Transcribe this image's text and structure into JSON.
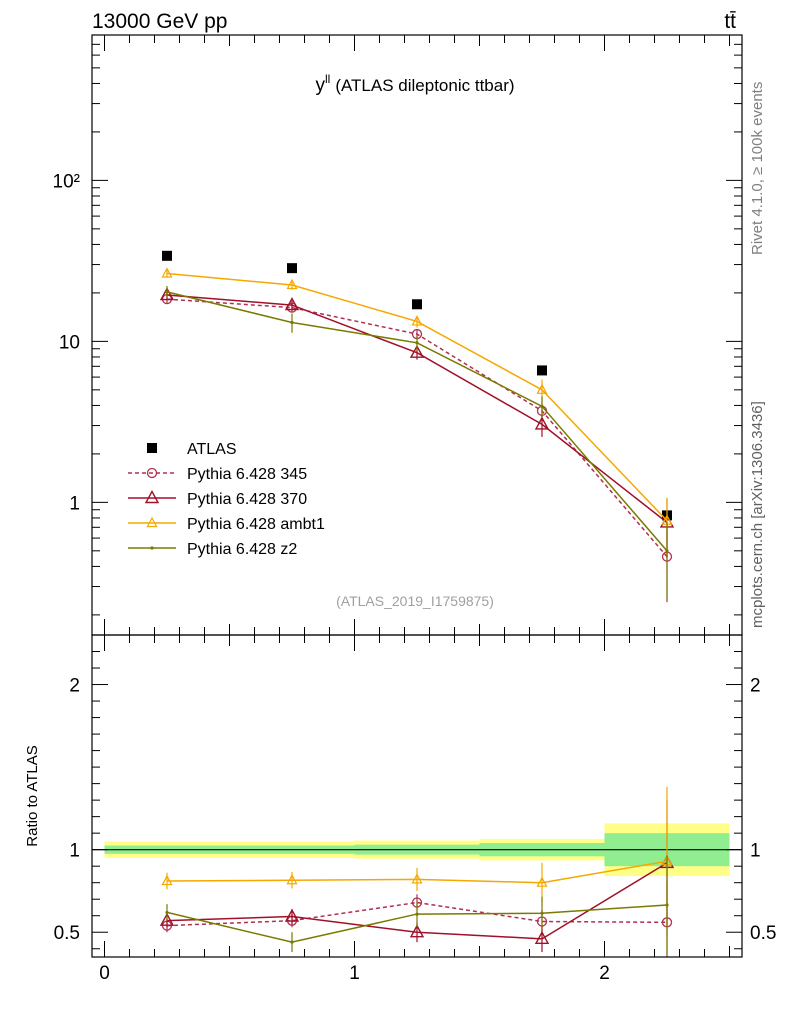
{
  "header": {
    "energy_label": "13000 GeV pp",
    "process_label": "tt̄"
  },
  "side_labels": {
    "rivet": "Rivet 4.1.0, ≥ 100k events",
    "mcplots": "mcplots.cern.ch [arXiv:1306.3436]"
  },
  "colors": {
    "atlas": "#000000",
    "p345": "#b03050",
    "p370": "#a01028",
    "ambt1": "#f5a800",
    "z2": "#7a7a00",
    "band_inner": "#90ee90",
    "band_outer": "#ffff88"
  },
  "chart_data": [
    {
      "type": "scatter",
      "title": "y",
      "title_superscript": "ll",
      "title_suffix": "(ATLAS dileptonic ttbar)",
      "analysis_id": "(ATLAS_2019_I1759875)",
      "yscale": "log",
      "xlim": [
        -0.05,
        2.55
      ],
      "ylim": [
        0.15,
        800
      ],
      "y_tick_labels": [
        "1",
        "10",
        "10²"
      ],
      "legend_position": "bottom-left",
      "bins": [
        [
          0,
          0.5
        ],
        [
          0.5,
          1.0
        ],
        [
          1.0,
          1.5
        ],
        [
          1.5,
          2.0
        ],
        [
          2.0,
          2.5
        ]
      ],
      "x": [
        0.25,
        0.75,
        1.25,
        1.75,
        2.25
      ],
      "series": [
        {
          "name": "ATLAS",
          "key": "atlas",
          "values": [
            34,
            28.5,
            17,
            6.6,
            0.83
          ],
          "errors": [
            0,
            0,
            0,
            0,
            0
          ]
        },
        {
          "name": "Pythia 6.428 345",
          "key": "p345",
          "values": [
            18.3,
            16.2,
            11.1,
            3.7,
            0.46
          ],
          "errors": [
            1.0,
            1.0,
            0.8,
            0.5,
            0.22
          ]
        },
        {
          "name": "Pythia 6.428 370",
          "key": "p370",
          "values": [
            19.4,
            16.8,
            8.5,
            3.05,
            0.75
          ],
          "errors": [
            1.0,
            1.1,
            0.8,
            0.5,
            0.3
          ]
        },
        {
          "name": "Pythia 6.428 ambt1",
          "key": "ambt1",
          "values": [
            26.4,
            22.4,
            13.3,
            5.0,
            0.77
          ],
          "errors": [
            1.5,
            1.5,
            1.1,
            0.8,
            0.3
          ]
        },
        {
          "name": "Pythia 6.428 z2",
          "key": "z2",
          "values": [
            20.3,
            13.1,
            9.8,
            3.95,
            0.5
          ],
          "errors": [
            1.8,
            1.8,
            1.0,
            0.6,
            0.25
          ]
        }
      ]
    },
    {
      "type": "scatter",
      "ylabel": "Ratio to ATLAS",
      "xlim": [
        -0.05,
        2.55
      ],
      "ylim": [
        0.35,
        2.3
      ],
      "x_tick_labels": [
        "0",
        "1",
        "2"
      ],
      "y_tick_labels": [
        "0.5",
        "1",
        "2"
      ],
      "bands": {
        "inner": [
          [
            0.975,
            1.025
          ],
          [
            0.975,
            1.025
          ],
          [
            0.97,
            1.03
          ],
          [
            0.96,
            1.04
          ],
          [
            0.9,
            1.1
          ]
        ],
        "outer": [
          [
            0.95,
            1.05
          ],
          [
            0.95,
            1.05
          ],
          [
            0.945,
            1.055
          ],
          [
            0.935,
            1.065
          ],
          [
            0.84,
            1.16
          ]
        ]
      },
      "series": [
        {
          "name": "Pythia 6.428 345",
          "key": "p345",
          "values": [
            0.54,
            0.57,
            0.68,
            0.565,
            0.56
          ],
          "errors": [
            0.04,
            0.04,
            0.05,
            0.07,
            0.25
          ]
        },
        {
          "name": "Pythia 6.428 370",
          "key": "p370",
          "values": [
            0.57,
            0.595,
            0.5,
            0.46,
            0.92
          ],
          "errors": [
            0.04,
            0.045,
            0.06,
            0.08,
            0.38
          ]
        },
        {
          "name": "Pythia 6.428 ambt1",
          "key": "ambt1",
          "values": [
            0.81,
            0.815,
            0.82,
            0.8,
            0.93
          ],
          "errors": [
            0.05,
            0.05,
            0.07,
            0.12,
            0.45
          ]
        },
        {
          "name": "Pythia 6.428 z2",
          "key": "z2",
          "values": [
            0.62,
            0.44,
            0.61,
            0.615,
            0.665
          ],
          "errors": [
            0.05,
            0.06,
            0.08,
            0.1,
            0.3
          ]
        }
      ]
    }
  ]
}
